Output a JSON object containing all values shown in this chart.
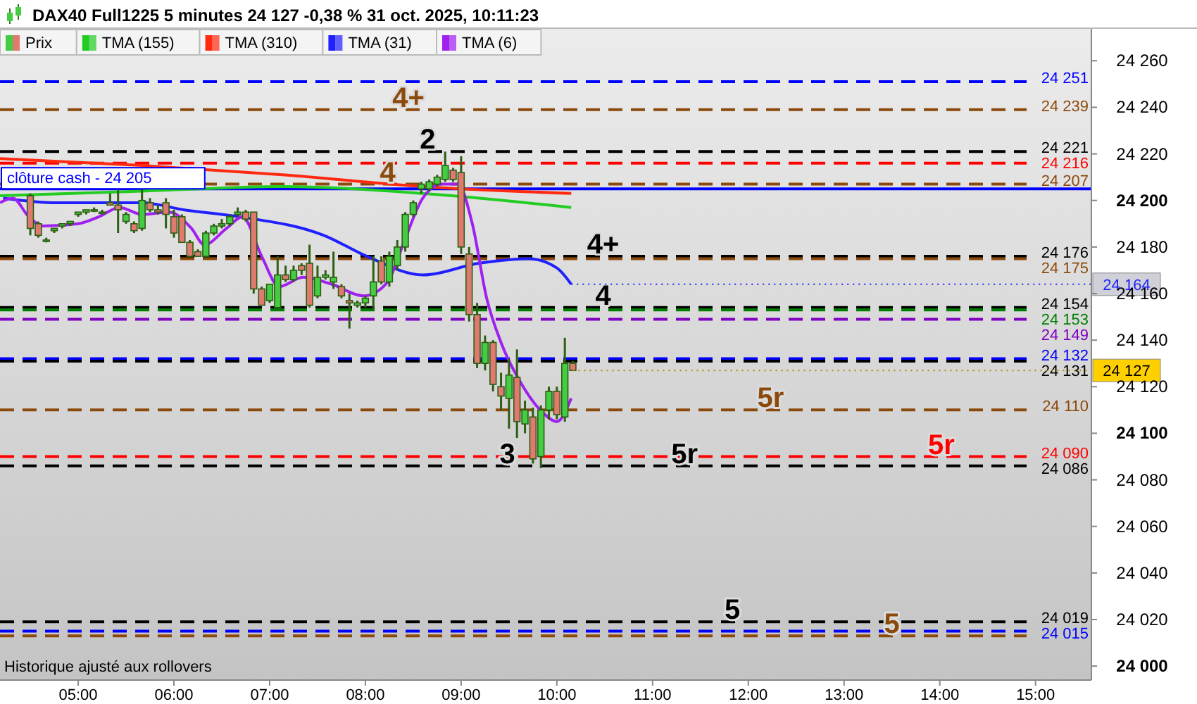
{
  "chart_data": {
    "type": "candlestick",
    "title": "DAX40 Full1225 5 minutes 24 127 -0,38 % 31 oct. 2025, 10:11:23",
    "legend": "top left",
    "xlim": [
      "2025-10-31T04:11",
      "2025-10-31T15:35"
    ],
    "xticks": [
      {
        "value": "2025-10-31T05:00",
        "label": "05:00"
      },
      {
        "value": "2025-10-31T06:00",
        "label": "06:00"
      },
      {
        "value": "2025-10-31T07:00",
        "label": "07:00"
      },
      {
        "value": "2025-10-31T08:00",
        "label": "08:00"
      },
      {
        "value": "2025-10-31T09:00",
        "label": "09:00"
      },
      {
        "value": "2025-10-31T10:00",
        "label": "10:00"
      },
      {
        "value": "2025-10-31T11:00",
        "label": "11:00"
      },
      {
        "value": "2025-10-31T12:00",
        "label": "12:00"
      },
      {
        "value": "2025-10-31T13:00",
        "label": "13:00"
      },
      {
        "value": "2025-10-31T14:00",
        "label": "14:00"
      },
      {
        "value": "2025-10-31T15:00",
        "label": "15:00"
      }
    ],
    "ylim": [
      23994,
      24274
    ],
    "yticks": [
      {
        "value": 24000,
        "label": "24 000"
      },
      {
        "value": 24020,
        "label": "24 020"
      },
      {
        "value": 24040,
        "label": "24 040"
      },
      {
        "value": 24060,
        "label": "24 060"
      },
      {
        "value": 24080,
        "label": "24 080"
      },
      {
        "value": 24100,
        "label": "24 100"
      },
      {
        "value": 24120,
        "label": "24 120"
      },
      {
        "value": 24140,
        "label": "24 140"
      },
      {
        "value": 24160,
        "label": "24 160"
      },
      {
        "value": 24180,
        "label": "24 180"
      },
      {
        "value": 24200,
        "label": "24 200"
      },
      {
        "value": 24220,
        "label": "24 220"
      },
      {
        "value": 24240,
        "label": "24 240"
      },
      {
        "value": 24260,
        "label": "24 260"
      }
    ],
    "series": [
      {
        "name": "Prix",
        "colors": [
          "#e07a70",
          "#e07a70",
          "#44cc44",
          "#44cc44",
          "#44cc44",
          "#44cc44",
          "#44cc44",
          "#44cc44",
          "#44cc44",
          "#44cc44",
          "#e07a70",
          "#e07a70",
          "#44cc44",
          "#e07a70",
          "#44cc44",
          "#e07a70",
          "#e07a70",
          "#e07a70",
          "#e07a70",
          "#e07a70",
          "#e07a70",
          "#e07a70",
          "#44cc44",
          "#44cc44",
          "#44cc44",
          "#44cc44",
          "#44cc44",
          "#e07a70",
          "#e07a70",
          "#e07a70",
          "#44cc44",
          "#44cc44",
          "#e07a70",
          "#44cc44",
          "#e07a70",
          "#e07a70",
          "#44cc44",
          "#44cc44",
          "#44cc44",
          "#e07a70",
          "#e07a70",
          "#44cc44",
          "#44cc44",
          "#44cc44",
          "#e07a70",
          "#44cc44",
          "#44cc44",
          "#44cc44",
          "#44cc44",
          "#44cc44",
          "#44cc44",
          "#44cc44",
          "#44cc44",
          "#e07a70",
          "#e07a70",
          "#e07a70",
          "#e07a70",
          "#44cc44",
          "#e07a70",
          "#e07a70",
          "#44cc44",
          "#e07a70",
          "#44cc44",
          "#e07a70",
          "#44cc44",
          "#44cc44",
          "#e07a70",
          "#44cc44",
          "#e07a70"
        ],
        "x": [
          "2025-10-31T04:30",
          "2025-10-31T04:35",
          "2025-10-31T04:40",
          "2025-10-31T04:45",
          "2025-10-31T04:50",
          "2025-10-31T04:55",
          "2025-10-31T05:00",
          "2025-10-31T05:05",
          "2025-10-31T05:10",
          "2025-10-31T05:15",
          "2025-10-31T05:20",
          "2025-10-31T05:25",
          "2025-10-31T05:30",
          "2025-10-31T05:35",
          "2025-10-31T05:40",
          "2025-10-31T05:45",
          "2025-10-31T05:50",
          "2025-10-31T05:55",
          "2025-10-31T06:00",
          "2025-10-31T06:05",
          "2025-10-31T06:10",
          "2025-10-31T06:15",
          "2025-10-31T06:20",
          "2025-10-31T06:25",
          "2025-10-31T06:30",
          "2025-10-31T06:35",
          "2025-10-31T06:40",
          "2025-10-31T06:45",
          "2025-10-31T06:50",
          "2025-10-31T06:55",
          "2025-10-31T07:00",
          "2025-10-31T07:05",
          "2025-10-31T07:10",
          "2025-10-31T07:15",
          "2025-10-31T07:20",
          "2025-10-31T07:25",
          "2025-10-31T07:30",
          "2025-10-31T07:35",
          "2025-10-31T07:40",
          "2025-10-31T07:45",
          "2025-10-31T07:50",
          "2025-10-31T07:55",
          "2025-10-31T08:00",
          "2025-10-31T08:05",
          "2025-10-31T08:10",
          "2025-10-31T08:15",
          "2025-10-31T08:20",
          "2025-10-31T08:25",
          "2025-10-31T08:30",
          "2025-10-31T08:35",
          "2025-10-31T08:40",
          "2025-10-31T08:45",
          "2025-10-31T08:50",
          "2025-10-31T08:55",
          "2025-10-31T09:00",
          "2025-10-31T09:05",
          "2025-10-31T09:10",
          "2025-10-31T09:15",
          "2025-10-31T09:20",
          "2025-10-31T09:25",
          "2025-10-31T09:30",
          "2025-10-31T09:35",
          "2025-10-31T09:40",
          "2025-10-31T09:45",
          "2025-10-31T09:50",
          "2025-10-31T09:55",
          "2025-10-31T10:00",
          "2025-10-31T10:05",
          "2025-10-31T10:10"
        ],
        "ohlc": [
          [
            24202,
            24203,
            24185,
            24188
          ],
          [
            24190,
            24191,
            24184,
            24185
          ],
          [
            24183,
            24184,
            24182,
            24183
          ],
          [
            24187,
            24188,
            24186,
            24188
          ],
          [
            24189,
            24190,
            24188,
            24190
          ],
          [
            24190,
            24191,
            24189,
            24191
          ],
          [
            24194,
            24195,
            24193,
            24195
          ],
          [
            24195,
            24196,
            24194,
            24196
          ],
          [
            24196,
            24197,
            24195,
            24196
          ],
          [
            24195,
            24196,
            24194,
            24195
          ],
          [
            24199,
            24203,
            24198,
            24198
          ],
          [
            24198,
            24205,
            24186,
            24196
          ],
          [
            24191,
            24195,
            24190,
            24194
          ],
          [
            24190,
            24191,
            24186,
            24187
          ],
          [
            24188,
            24206,
            24187,
            24200
          ],
          [
            24199,
            24201,
            24195,
            24196
          ],
          [
            24196,
            24198,
            24194,
            24195
          ],
          [
            24199,
            24201,
            24188,
            24194
          ],
          [
            24193,
            24196,
            24184,
            24186
          ],
          [
            24193,
            24194,
            24182,
            24182
          ],
          [
            24182,
            24183,
            24176,
            24176
          ],
          [
            24178,
            24179,
            24176,
            24176
          ],
          [
            24176,
            24187,
            24175,
            24186
          ],
          [
            24186,
            24190,
            24185,
            24189
          ],
          [
            24189,
            24192,
            24188,
            24190
          ],
          [
            24190,
            24194,
            24189,
            24193
          ],
          [
            24194,
            24197,
            24193,
            24195
          ],
          [
            24195,
            24196,
            24191,
            24192
          ],
          [
            24195,
            24195,
            24160,
            24162
          ],
          [
            24162,
            24163,
            24155,
            24155
          ],
          [
            24157,
            24164,
            24156,
            24164
          ],
          [
            24154,
            24176,
            24153,
            24168
          ],
          [
            24168,
            24172,
            24165,
            24166
          ],
          [
            24166,
            24172,
            24165,
            24170
          ],
          [
            24172,
            24173,
            24168,
            24170
          ],
          [
            24173,
            24181,
            24154,
            24155
          ],
          [
            24159,
            24172,
            24158,
            24167
          ],
          [
            24167,
            24170,
            24166,
            24168
          ],
          [
            24165,
            24178,
            24162,
            24167
          ],
          [
            24163,
            24164,
            24158,
            24159
          ],
          [
            24157,
            24160,
            24145,
            24156
          ],
          [
            24155,
            24157,
            24154,
            24156
          ],
          [
            24156,
            24159,
            24154,
            24158
          ],
          [
            24159,
            24176,
            24153,
            24165
          ],
          [
            24174,
            24176,
            24164,
            24165
          ],
          [
            24165,
            24178,
            24163,
            24176
          ],
          [
            24172,
            24183,
            24170,
            24180
          ],
          [
            24180,
            24195,
            24178,
            24194
          ],
          [
            24194,
            24200,
            24193,
            24199
          ],
          [
            24205,
            24208,
            24203,
            24207
          ],
          [
            24205,
            24209,
            24204,
            24208
          ],
          [
            24207,
            24211,
            24206,
            24210
          ],
          [
            24209,
            24221,
            24208,
            24215
          ],
          [
            24213,
            24214,
            24208,
            24209
          ],
          [
            24212,
            24219,
            24177,
            24180
          ],
          [
            24177,
            24180,
            24148,
            24151
          ],
          [
            24151,
            24156,
            24128,
            24130
          ],
          [
            24130,
            24142,
            24127,
            24139
          ],
          [
            24139,
            24140,
            24118,
            24121
          ],
          [
            24120,
            24126,
            24110,
            24116
          ],
          [
            24115,
            24132,
            24102,
            24125
          ],
          [
            24124,
            24136,
            24098,
            24105
          ],
          [
            24104,
            24114,
            24100,
            24110
          ],
          [
            24107,
            24111,
            24087,
            24089
          ],
          [
            24090,
            24112,
            24085,
            24110
          ],
          [
            24110,
            24120,
            24106,
            24118
          ],
          [
            24118,
            24120,
            24106,
            24108
          ],
          [
            24107,
            24141,
            24105,
            24130
          ],
          [
            24130,
            24131,
            24127,
            24127
          ]
        ]
      },
      {
        "name": "TMA (155)",
        "type": "line",
        "color": "#22cc22",
        "x": [
          "2025-10-31T04:11",
          "2025-10-31T05:40",
          "2025-10-31T07:08",
          "2025-10-31T08:36",
          "2025-10-31T10:09"
        ],
        "values": [
          24202,
          24204,
          24206,
          24203,
          24197
        ]
      },
      {
        "name": "TMA (310)",
        "type": "line",
        "color": "#ff2a10",
        "x": [
          "2025-10-31T04:11",
          "2025-10-31T05:40",
          "2025-10-31T07:08",
          "2025-10-31T08:36",
          "2025-10-31T10:09"
        ],
        "values": [
          24218,
          24215,
          24211,
          24206,
          24203
        ]
      },
      {
        "name": "TMA (31)",
        "type": "line",
        "color": "#2020ff",
        "x": [
          "2025-10-31T04:13",
          "2025-10-31T04:47",
          "2025-10-31T05:40",
          "2025-10-31T06:06",
          "2025-10-31T06:41",
          "2025-10-31T07:34",
          "2025-10-31T08:01",
          "2025-10-31T08:36",
          "2025-10-31T09:11",
          "2025-10-31T09:42",
          "2025-10-31T10:00",
          "2025-10-31T10:09"
        ],
        "values": [
          24201,
          24199,
          24199,
          24196,
          24193,
          24185,
          24176,
          24168,
          24173,
          24175,
          24171,
          24164
        ]
      },
      {
        "name": "TMA (6)",
        "type": "line",
        "color": "#a020f0",
        "x": [
          "2025-10-31T04:11",
          "2025-10-31T04:19",
          "2025-10-31T04:29",
          "2025-10-31T04:38",
          "2025-10-31T05:00",
          "2025-10-31T05:13",
          "2025-10-31T05:26",
          "2025-10-31T05:40",
          "2025-10-31T05:57",
          "2025-10-31T06:11",
          "2025-10-31T06:19",
          "2025-10-31T06:33",
          "2025-10-31T06:43",
          "2025-10-31T06:55",
          "2025-10-31T07:06",
          "2025-10-31T07:21",
          "2025-10-31T07:39",
          "2025-10-31T07:59",
          "2025-10-31T08:14",
          "2025-10-31T08:23",
          "2025-10-31T08:36",
          "2025-10-31T08:48",
          "2025-10-31T08:58",
          "2025-10-31T09:07",
          "2025-10-31T09:16",
          "2025-10-31T09:25",
          "2025-10-31T09:38",
          "2025-10-31T09:51",
          "2025-10-31T10:00",
          "2025-10-31T10:09"
        ],
        "values": [
          24199,
          24201,
          24193,
          24189,
          24190,
          24193,
          24197,
          24194,
          24195,
          24188,
          24181,
          24188,
          24193,
          24176,
          24163,
          24167,
          24164,
          24159,
          24165,
          24180,
          24201,
          24207,
          24207,
          24190,
          24158,
          24139,
          24121,
          24109,
          24105,
          24115
        ]
      }
    ],
    "ref_lines": [
      {
        "axis": "y",
        "value": 24251,
        "label": "24 251",
        "color": "#0000ff",
        "line_style": "dashed"
      },
      {
        "axis": "y",
        "value": 24239,
        "label": "24 239",
        "color": "#8b4a0c",
        "line_style": "dashed"
      },
      {
        "axis": "y",
        "value": 24221,
        "label": "24 221",
        "color": "#000000",
        "line_style": "dashed"
      },
      {
        "axis": "y",
        "value": 24216,
        "label": "24 216",
        "color": "#ff0000",
        "line_style": "dashed"
      },
      {
        "axis": "y",
        "value": 24207,
        "label": "24 207",
        "color": "#8b4a0c",
        "line_style": "dashed"
      },
      {
        "axis": "y",
        "value": 24205,
        "label": "clôture cash -  24 205",
        "color": "#0000ff",
        "line_style": "solid"
      },
      {
        "axis": "y",
        "value": 24176,
        "label": "24 176",
        "color": "#000000",
        "line_style": "dashed"
      },
      {
        "axis": "y",
        "value": 24175,
        "label": "24 175",
        "color": "#8b4a0c",
        "line_style": "dashed"
      },
      {
        "axis": "y",
        "value": 24154,
        "label": "24 154",
        "color": "#000000",
        "line_style": "dashed"
      },
      {
        "axis": "y",
        "value": 24153,
        "label": "24 153",
        "color": "#008000",
        "line_style": "dashed"
      },
      {
        "axis": "y",
        "value": 24149,
        "label": "24 149",
        "color": "#8000c0",
        "line_style": "dashed"
      },
      {
        "axis": "y",
        "value": 24132,
        "label": "24 132",
        "color": "#0000ff",
        "line_style": "dashed"
      },
      {
        "axis": "y",
        "value": 24131,
        "label": "24 131",
        "color": "#000000",
        "line_style": "dashed"
      },
      {
        "axis": "y",
        "value": 24110,
        "label": "24 110",
        "color": "#8b4a0c",
        "line_style": "dashed"
      },
      {
        "axis": "y",
        "value": 24090,
        "label": "24 090",
        "color": "#ff0000",
        "line_style": "dashed"
      },
      {
        "axis": "y",
        "value": 24086,
        "label": "24 086",
        "color": "#000000",
        "line_style": "dashed"
      },
      {
        "axis": "y",
        "value": 24019,
        "label": "24 019",
        "color": "#000000",
        "line_style": "dashed"
      },
      {
        "axis": "y",
        "value": 24015,
        "label": "24 015",
        "color": "#0000ff",
        "line_style": "dashed"
      },
      {
        "axis": "y",
        "value": 24013,
        "label": null,
        "color": "#8b4a0c",
        "line_style": "dashed"
      }
    ],
    "annotations": [
      {
        "text": "4+",
        "x": "2025-10-31T08:27",
        "y": 24239
      },
      {
        "text": "4",
        "x": "2025-10-31T08:14",
        "y": 24207
      },
      {
        "text": "2",
        "x": "2025-10-31T08:39",
        "y": 24221
      },
      {
        "text": "4+",
        "x": "2025-10-31T10:29",
        "y": 24176
      },
      {
        "text": "4",
        "x": "2025-10-31T10:29",
        "y": 24154
      },
      {
        "text": "5r",
        "x": "2025-10-31T12:14",
        "y": 24110
      },
      {
        "text": "5r",
        "x": "2025-10-31T14:01",
        "y": 24090
      },
      {
        "text": "5r",
        "x": "2025-10-31T11:20",
        "y": 24086
      },
      {
        "text": "3",
        "x": "2025-10-31T09:29",
        "y": 24086
      },
      {
        "text": "5",
        "x": "2025-10-31T11:50",
        "y": 24019
      },
      {
        "text": "5",
        "x": "2025-10-31T13:30",
        "y": 24013
      },
      {
        "text": "24 164",
        "x": "2025-10-31T10:09",
        "y": 24164
      },
      {
        "text": "24 127",
        "x": "2025-10-31T10:10",
        "y": 24127
      },
      "Historique ajusté aux rollovers"
    ]
  }
}
